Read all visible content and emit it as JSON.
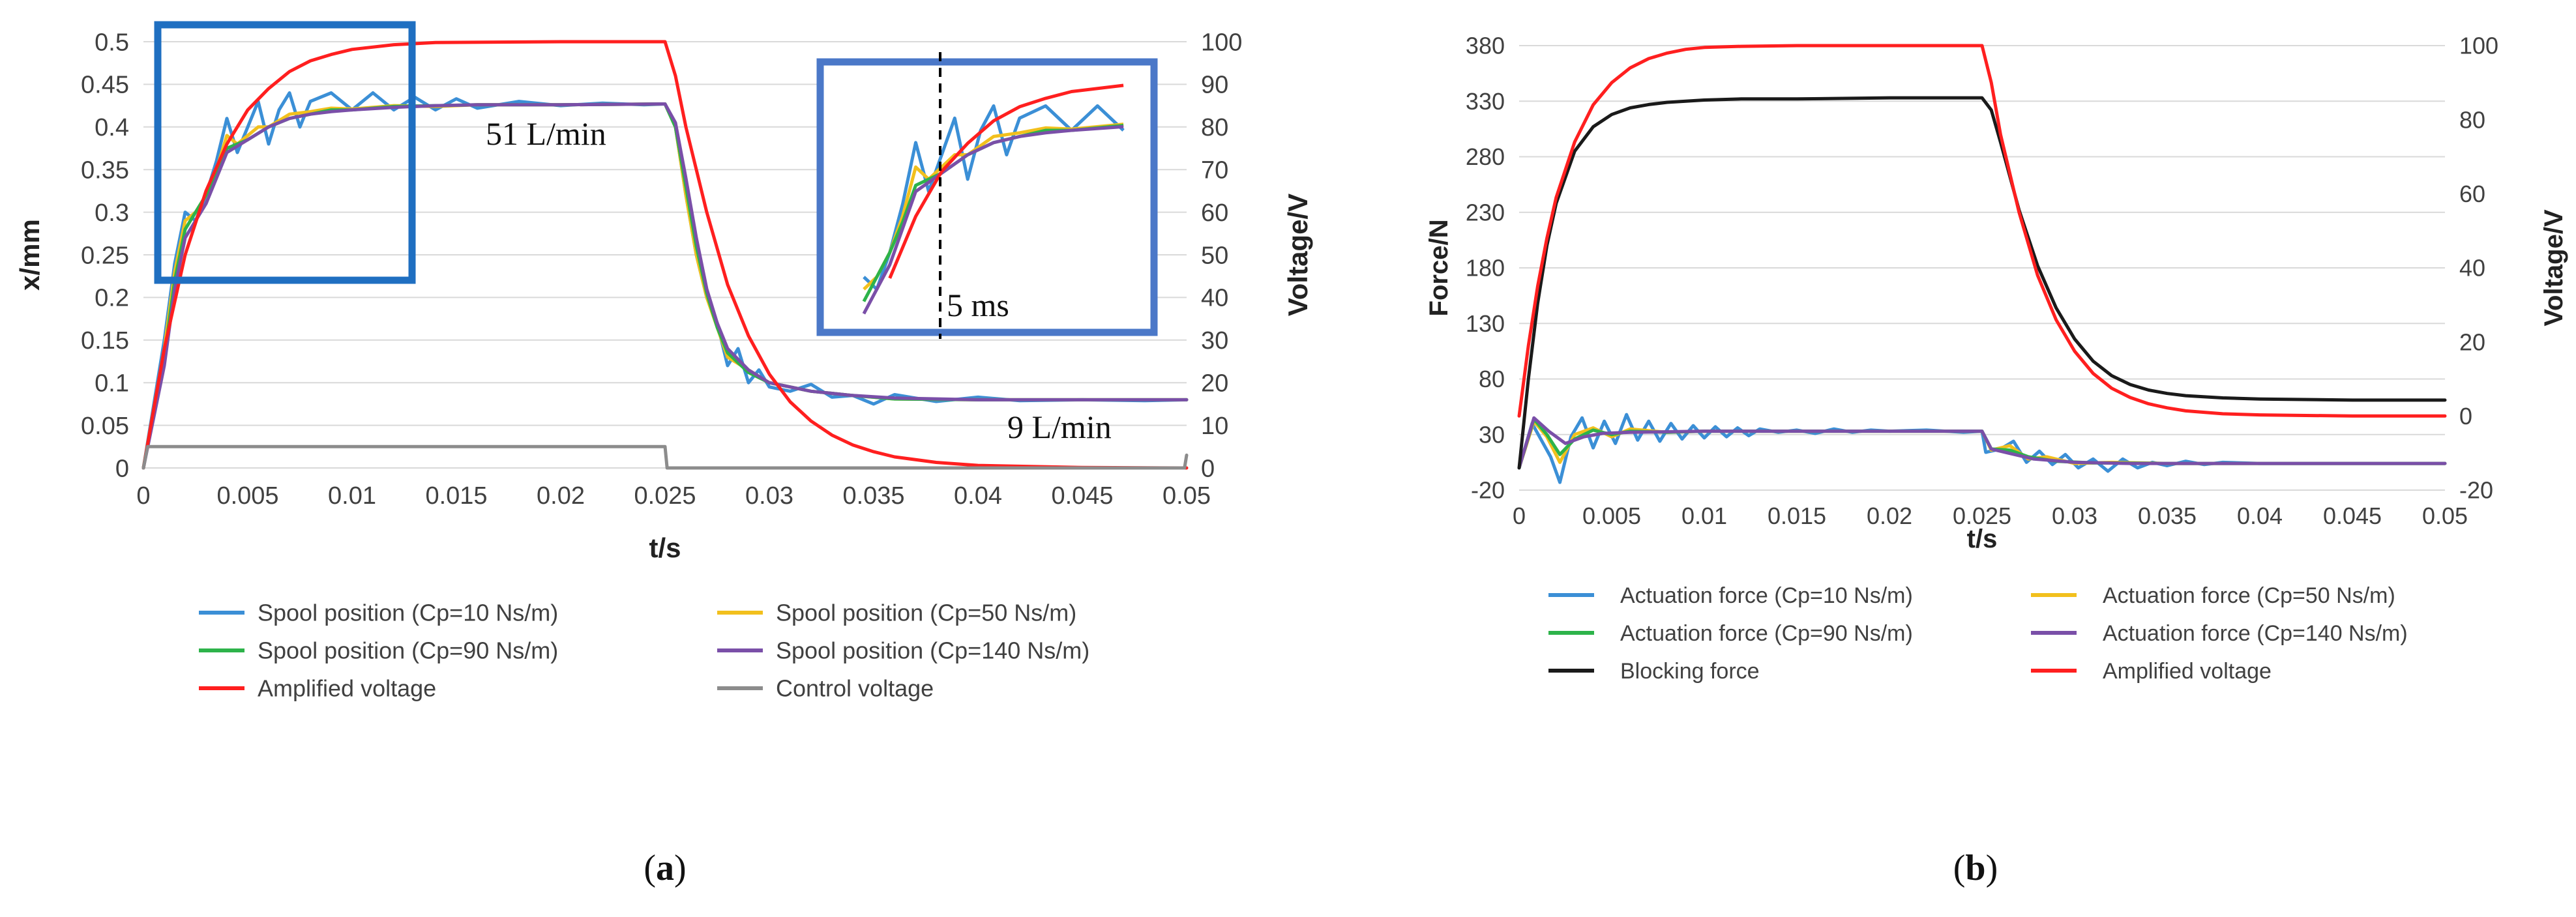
{
  "chart_data": [
    {
      "id": "a",
      "type": "line",
      "panel_label_open": "(",
      "panel_label_letter": "a",
      "panel_label_close": ")",
      "xlabel": "t/s",
      "ylabel": "x/mm",
      "y2label": "Voltage/V",
      "xlim": [
        0,
        0.05
      ],
      "ylim": [
        0,
        0.5
      ],
      "y2lim": [
        0,
        100
      ],
      "xticks": [
        "0",
        "0.005",
        "0.01",
        "0.015",
        "0.02",
        "0.025",
        "0.03",
        "0.035",
        "0.04",
        "0.045",
        "0.05"
      ],
      "yticks": [
        "0",
        "0.05",
        "0.1",
        "0.15",
        "0.2",
        "0.25",
        "0.3",
        "0.35",
        "0.4",
        "0.45",
        "0.5"
      ],
      "y2ticks": [
        "0",
        "10",
        "20",
        "30",
        "40",
        "50",
        "60",
        "70",
        "80",
        "90",
        "100"
      ],
      "grid": true,
      "legend_position": "bottom",
      "annotations": [
        "51 L/min",
        "9 L/min",
        "5 ms"
      ],
      "series": [
        {
          "name": "Spool position (Cp=10 Ns/m)",
          "axis": "left",
          "color": "#3b8fd6",
          "x": [
            0,
            0.001,
            0.0015,
            0.002,
            0.0025,
            0.003,
            0.0035,
            0.004,
            0.0045,
            0.005,
            0.0055,
            0.006,
            0.0065,
            0.007,
            0.0075,
            0.008,
            0.009,
            0.01,
            0.011,
            0.012,
            0.013,
            0.014,
            0.015,
            0.016,
            0.018,
            0.02,
            0.022,
            0.024,
            0.025,
            0.0255,
            0.026,
            0.0265,
            0.027,
            0.0275,
            0.028,
            0.0285,
            0.029,
            0.0295,
            0.03,
            0.031,
            0.032,
            0.033,
            0.034,
            0.035,
            0.036,
            0.038,
            0.04,
            0.042,
            0.045,
            0.048,
            0.05
          ],
          "values": [
            0,
            0.15,
            0.24,
            0.3,
            0.29,
            0.32,
            0.36,
            0.41,
            0.37,
            0.4,
            0.43,
            0.38,
            0.42,
            0.44,
            0.4,
            0.43,
            0.44,
            0.42,
            0.44,
            0.42,
            0.435,
            0.42,
            0.433,
            0.422,
            0.43,
            0.425,
            0.428,
            0.426,
            0.427,
            0.4,
            0.32,
            0.25,
            0.2,
            0.17,
            0.12,
            0.14,
            0.1,
            0.115,
            0.095,
            0.09,
            0.098,
            0.083,
            0.085,
            0.075,
            0.086,
            0.078,
            0.083,
            0.079,
            0.08,
            0.079,
            0.08
          ]
        },
        {
          "name": "Spool position (Cp=50 Ns/m)",
          "axis": "left",
          "color": "#f2c01d",
          "x": [
            0,
            0.001,
            0.0015,
            0.002,
            0.0025,
            0.003,
            0.0035,
            0.004,
            0.0045,
            0.005,
            0.0055,
            0.006,
            0.007,
            0.008,
            0.009,
            0.01,
            0.012,
            0.014,
            0.016,
            0.02,
            0.025,
            0.0255,
            0.026,
            0.0265,
            0.027,
            0.0275,
            0.028,
            0.029,
            0.03,
            0.032,
            0.034,
            0.036,
            0.04,
            0.045,
            0.05
          ],
          "values": [
            0,
            0.14,
            0.23,
            0.29,
            0.3,
            0.32,
            0.35,
            0.39,
            0.38,
            0.39,
            0.4,
            0.4,
            0.415,
            0.418,
            0.422,
            0.421,
            0.425,
            0.424,
            0.426,
            0.426,
            0.427,
            0.4,
            0.32,
            0.25,
            0.2,
            0.165,
            0.13,
            0.115,
            0.1,
            0.09,
            0.085,
            0.081,
            0.08,
            0.08,
            0.08
          ]
        },
        {
          "name": "Spool position (Cp=90 Ns/m)",
          "axis": "left",
          "color": "#2db34a",
          "x": [
            0,
            0.001,
            0.0015,
            0.002,
            0.0025,
            0.003,
            0.0035,
            0.004,
            0.0045,
            0.005,
            0.006,
            0.007,
            0.008,
            0.009,
            0.01,
            0.012,
            0.014,
            0.016,
            0.02,
            0.025,
            0.0255,
            0.026,
            0.0265,
            0.027,
            0.0275,
            0.028,
            0.029,
            0.03,
            0.032,
            0.034,
            0.036,
            0.04,
            0.045,
            0.05
          ],
          "values": [
            0,
            0.13,
            0.22,
            0.28,
            0.3,
            0.32,
            0.345,
            0.375,
            0.38,
            0.385,
            0.4,
            0.41,
            0.415,
            0.42,
            0.42,
            0.424,
            0.425,
            0.426,
            0.426,
            0.427,
            0.4,
            0.33,
            0.26,
            0.205,
            0.165,
            0.135,
            0.112,
            0.1,
            0.09,
            0.085,
            0.081,
            0.08,
            0.08,
            0.08
          ]
        },
        {
          "name": "Spool position (Cp=140 Ns/m)",
          "axis": "left",
          "color": "#7a4fa8",
          "x": [
            0,
            0.001,
            0.0015,
            0.002,
            0.0025,
            0.003,
            0.0035,
            0.004,
            0.005,
            0.006,
            0.007,
            0.008,
            0.009,
            0.01,
            0.012,
            0.014,
            0.016,
            0.02,
            0.025,
            0.0255,
            0.026,
            0.0265,
            0.027,
            0.0275,
            0.028,
            0.029,
            0.03,
            0.032,
            0.034,
            0.036,
            0.04,
            0.045,
            0.05
          ],
          "values": [
            0,
            0.12,
            0.21,
            0.27,
            0.29,
            0.31,
            0.34,
            0.37,
            0.385,
            0.4,
            0.41,
            0.415,
            0.418,
            0.42,
            0.423,
            0.425,
            0.426,
            0.426,
            0.427,
            0.405,
            0.34,
            0.27,
            0.21,
            0.17,
            0.14,
            0.115,
            0.1,
            0.09,
            0.085,
            0.082,
            0.08,
            0.08,
            0.08
          ]
        },
        {
          "name": "Amplified voltage",
          "axis": "right",
          "color": "#ff1f1f",
          "x": [
            0,
            0.001,
            0.002,
            0.003,
            0.004,
            0.005,
            0.006,
            0.007,
            0.008,
            0.009,
            0.01,
            0.012,
            0.014,
            0.02,
            0.025,
            0.0255,
            0.026,
            0.027,
            0.028,
            0.029,
            0.03,
            0.031,
            0.032,
            0.033,
            0.034,
            0.035,
            0.036,
            0.038,
            0.04,
            0.045,
            0.05
          ],
          "values": [
            0,
            28,
            50,
            65,
            76,
            84,
            89,
            93,
            95.5,
            97,
            98.2,
            99.3,
            99.8,
            100,
            100,
            92,
            80,
            60,
            43,
            31,
            22,
            15.5,
            11,
            7.7,
            5.4,
            3.8,
            2.6,
            1.3,
            0.6,
            0.1,
            0
          ]
        },
        {
          "name": "Control voltage",
          "axis": "right",
          "color": "#8c8c8c",
          "x": [
            0,
            0.0002,
            0.025,
            0.0251,
            0.0499,
            0.05
          ],
          "values": [
            0,
            5,
            5,
            0,
            0,
            3
          ]
        }
      ]
    },
    {
      "id": "b",
      "type": "line",
      "panel_label_open": "(",
      "panel_label_letter": "b",
      "panel_label_close": ")",
      "xlabel": "t/s",
      "ylabel": "Force/N",
      "y2label": "Voltage/V",
      "xlim": [
        0,
        0.05
      ],
      "ylim": [
        -20,
        380
      ],
      "y2lim": [
        -20,
        100
      ],
      "xticks": [
        "0",
        "0.005",
        "0.01",
        "0.015",
        "0.02",
        "0.025",
        "0.03",
        "0.035",
        "0.04",
        "0.045",
        "0.05"
      ],
      "yticks": [
        "-20",
        "30",
        "80",
        "130",
        "180",
        "230",
        "280",
        "330",
        "380"
      ],
      "y2ticks": [
        "-20",
        "0",
        "20",
        "40",
        "60",
        "80",
        "100"
      ],
      "grid": true,
      "legend_position": "bottom",
      "series": [
        {
          "name": "Actuation force (Cp=10 Ns/m)",
          "axis": "left",
          "color": "#3b8fd6",
          "x": [
            0,
            0.0007,
            0.0012,
            0.0017,
            0.0022,
            0.0028,
            0.0034,
            0.004,
            0.0046,
            0.0052,
            0.0058,
            0.0064,
            0.007,
            0.0076,
            0.0082,
            0.0088,
            0.0094,
            0.01,
            0.0106,
            0.0112,
            0.0118,
            0.0124,
            0.013,
            0.014,
            0.015,
            0.016,
            0.017,
            0.018,
            0.019,
            0.02,
            0.022,
            0.024,
            0.025,
            0.0252,
            0.026,
            0.0267,
            0.0274,
            0.0281,
            0.0288,
            0.0295,
            0.0302,
            0.031,
            0.0318,
            0.0326,
            0.0334,
            0.0342,
            0.035,
            0.036,
            0.037,
            0.038,
            0.04,
            0.045,
            0.05
          ],
          "values": [
            0,
            40,
            25,
            10,
            -13,
            28,
            45,
            18,
            42,
            22,
            48,
            25,
            42,
            24,
            40,
            26,
            38,
            27,
            37,
            28,
            36,
            29,
            35,
            32,
            34,
            31,
            35,
            32,
            34,
            33,
            34,
            32,
            33,
            14,
            17,
            24,
            5,
            15,
            3,
            12,
            0,
            8,
            -3,
            8,
            0,
            5,
            2,
            6,
            3,
            5,
            4,
            4,
            4
          ]
        },
        {
          "name": "Actuation force (Cp=50 Ns/m)",
          "axis": "left",
          "color": "#f2c01d",
          "x": [
            0,
            0.0008,
            0.0015,
            0.0022,
            0.003,
            0.004,
            0.005,
            0.006,
            0.008,
            0.01,
            0.015,
            0.02,
            0.025,
            0.0255,
            0.0265,
            0.0275,
            0.0285,
            0.03,
            0.032,
            0.035,
            0.04,
            0.05
          ],
          "values": [
            0,
            42,
            28,
            5,
            30,
            36,
            28,
            35,
            32,
            33,
            33,
            33,
            33,
            16,
            20,
            8,
            10,
            4,
            5,
            4,
            4,
            4
          ]
        },
        {
          "name": "Actuation force (Cp=90 Ns/m)",
          "axis": "left",
          "color": "#2db34a",
          "x": [
            0,
            0.0008,
            0.0015,
            0.0022,
            0.003,
            0.004,
            0.005,
            0.006,
            0.008,
            0.01,
            0.015,
            0.02,
            0.025,
            0.0255,
            0.0265,
            0.0275,
            0.029,
            0.031,
            0.035,
            0.04,
            0.05
          ],
          "values": [
            0,
            44,
            30,
            12,
            26,
            34,
            30,
            33,
            32,
            33,
            33,
            33,
            33,
            17,
            16,
            10,
            6,
            4.5,
            4,
            4,
            4
          ]
        },
        {
          "name": "Actuation force (Cp=140 Ns/m)",
          "axis": "left",
          "color": "#7a4fa8",
          "x": [
            0,
            0.0008,
            0.0016,
            0.0025,
            0.0035,
            0.0045,
            0.006,
            0.008,
            0.01,
            0.015,
            0.02,
            0.025,
            0.0255,
            0.0265,
            0.0278,
            0.03,
            0.033,
            0.04,
            0.05
          ],
          "values": [
            0,
            45,
            33,
            22,
            28,
            31,
            32,
            32.5,
            33,
            33,
            33,
            33,
            17,
            13,
            8,
            5,
            4,
            4,
            4
          ]
        },
        {
          "name": "Blocking force",
          "axis": "left",
          "color": "#1a1a1a",
          "x": [
            0,
            0.0005,
            0.001,
            0.0015,
            0.002,
            0.003,
            0.004,
            0.005,
            0.006,
            0.007,
            0.008,
            0.009,
            0.01,
            0.012,
            0.015,
            0.02,
            0.025,
            0.0255,
            0.026,
            0.027,
            0.028,
            0.029,
            0.03,
            0.031,
            0.032,
            0.033,
            0.034,
            0.035,
            0.036,
            0.038,
            0.04,
            0.045,
            0.05
          ],
          "values": [
            0,
            80,
            148,
            200,
            238,
            285,
            307,
            318,
            324,
            327,
            329,
            330,
            331,
            332,
            332,
            333,
            333,
            322,
            293,
            232,
            182,
            144,
            116,
            96,
            83,
            75,
            70,
            67,
            65,
            63,
            62,
            61,
            61
          ]
        },
        {
          "name": "Amplified voltage",
          "axis": "right",
          "color": "#ff1f1f",
          "x": [
            0,
            0.0005,
            0.001,
            0.0015,
            0.002,
            0.003,
            0.004,
            0.005,
            0.006,
            0.007,
            0.008,
            0.009,
            0.01,
            0.012,
            0.015,
            0.02,
            0.025,
            0.0255,
            0.026,
            0.027,
            0.028,
            0.029,
            0.03,
            0.031,
            0.032,
            0.033,
            0.034,
            0.035,
            0.036,
            0.038,
            0.04,
            0.045,
            0.05
          ],
          "values": [
            0,
            19,
            35,
            48,
            59,
            74,
            84,
            90,
            94,
            96.5,
            98,
            99,
            99.5,
            99.8,
            100,
            100,
            100,
            90,
            76,
            55,
            38,
            26,
            17.5,
            11.5,
            7.5,
            5,
            3.3,
            2.2,
            1.4,
            0.6,
            0.3,
            0,
            0
          ]
        }
      ]
    }
  ]
}
